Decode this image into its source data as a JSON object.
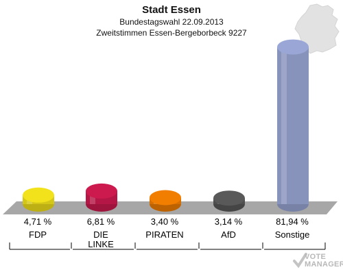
{
  "header": {
    "title": "Stadt Essen",
    "subtitle1": "Bundestagswahl 22.09.2013",
    "subtitle2": "Zweitstimmen Essen-Bergeborbeck 9227"
  },
  "chart_data": {
    "type": "bar",
    "style": "3d-cylinder",
    "title": "Stadt Essen",
    "categories": [
      "FDP",
      "DIE LINKE",
      "PIRATEN",
      "AfD",
      "Sonstige"
    ],
    "values": [
      4.71,
      6.81,
      3.4,
      3.14,
      81.94
    ],
    "value_labels": [
      "4,71 %",
      "6,81 %",
      "3,40 %",
      "3,14 %",
      "81,94 %"
    ],
    "colors": [
      "#f2e21b",
      "#cc1a4e",
      "#f27e00",
      "#595959",
      "#9aa7d6"
    ],
    "ylim": [
      0,
      100
    ],
    "grid": false,
    "legend": "none"
  },
  "labels": {
    "fdp_pct": "4,71 %",
    "fdp_name": "FDP",
    "linke_pct": "6,81 %",
    "linke_name_1": "DIE",
    "linke_name_2": "LINKE",
    "piraten_pct": "3,40 %",
    "piraten_name": "PIRATEN",
    "afd_pct": "3,14 %",
    "afd_name": "AfD",
    "sonstige_pct": "81,94 %",
    "sonstige_name": "Sonstige"
  },
  "logo": {
    "line1": "VOTE",
    "line2": "MANAGER"
  }
}
